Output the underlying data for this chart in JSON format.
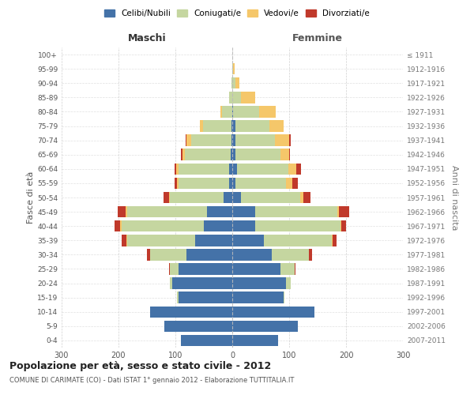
{
  "age_groups": [
    "0-4",
    "5-9",
    "10-14",
    "15-19",
    "20-24",
    "25-29",
    "30-34",
    "35-39",
    "40-44",
    "45-49",
    "50-54",
    "55-59",
    "60-64",
    "65-69",
    "70-74",
    "75-79",
    "80-84",
    "85-89",
    "90-94",
    "95-99",
    "100+"
  ],
  "birth_years": [
    "2007-2011",
    "2002-2006",
    "1997-2001",
    "1992-1996",
    "1987-1991",
    "1982-1986",
    "1977-1981",
    "1972-1976",
    "1967-1971",
    "1962-1966",
    "1957-1961",
    "1952-1956",
    "1947-1951",
    "1942-1946",
    "1937-1941",
    "1932-1936",
    "1927-1931",
    "1922-1926",
    "1917-1921",
    "1912-1916",
    "≤ 1911"
  ],
  "male": {
    "celibi": [
      90,
      120,
      145,
      95,
      105,
      95,
      80,
      65,
      50,
      45,
      15,
      5,
      5,
      3,
      2,
      2,
      0,
      0,
      0,
      0,
      0
    ],
    "coniugati": [
      0,
      0,
      0,
      2,
      5,
      15,
      65,
      120,
      145,
      140,
      95,
      90,
      90,
      80,
      70,
      50,
      18,
      5,
      1,
      0,
      0
    ],
    "vedovi": [
      0,
      0,
      0,
      0,
      0,
      0,
      0,
      1,
      2,
      2,
      1,
      2,
      3,
      5,
      8,
      5,
      3,
      1,
      0,
      0,
      0
    ],
    "divorziati": [
      0,
      0,
      0,
      0,
      0,
      1,
      5,
      8,
      10,
      15,
      10,
      5,
      3,
      2,
      2,
      0,
      0,
      0,
      0,
      0,
      0
    ]
  },
  "female": {
    "nubili": [
      80,
      115,
      145,
      90,
      95,
      85,
      70,
      55,
      40,
      40,
      15,
      5,
      8,
      5,
      5,
      5,
      2,
      0,
      0,
      0,
      0
    ],
    "coniugate": [
      0,
      0,
      0,
      2,
      8,
      25,
      65,
      120,
      150,
      145,
      105,
      90,
      90,
      80,
      70,
      60,
      45,
      15,
      5,
      2,
      0
    ],
    "vedove": [
      0,
      0,
      0,
      0,
      0,
      0,
      0,
      1,
      2,
      3,
      5,
      10,
      15,
      15,
      25,
      25,
      30,
      25,
      8,
      2,
      0
    ],
    "divorziate": [
      0,
      0,
      0,
      0,
      0,
      1,
      5,
      8,
      8,
      18,
      12,
      10,
      8,
      2,
      3,
      0,
      0,
      0,
      0,
      0,
      0
    ]
  },
  "colors": {
    "celibi": "#4472a8",
    "coniugati": "#c5d6a0",
    "vedovi": "#f5c76a",
    "divorziati": "#c0392b"
  },
  "xlim": 300,
  "title": "Popolazione per età, sesso e stato civile - 2012",
  "subtitle": "COMUNE DI CARIMATE (CO) - Dati ISTAT 1° gennaio 2012 - Elaborazione TUTTITALIA.IT",
  "ylabel": "Fasce di età",
  "ylabel_right": "Anni di nascita",
  "xlabel_left": "Maschi",
  "xlabel_right": "Femmine",
  "background_color": "#ffffff",
  "grid_color": "#cccccc"
}
